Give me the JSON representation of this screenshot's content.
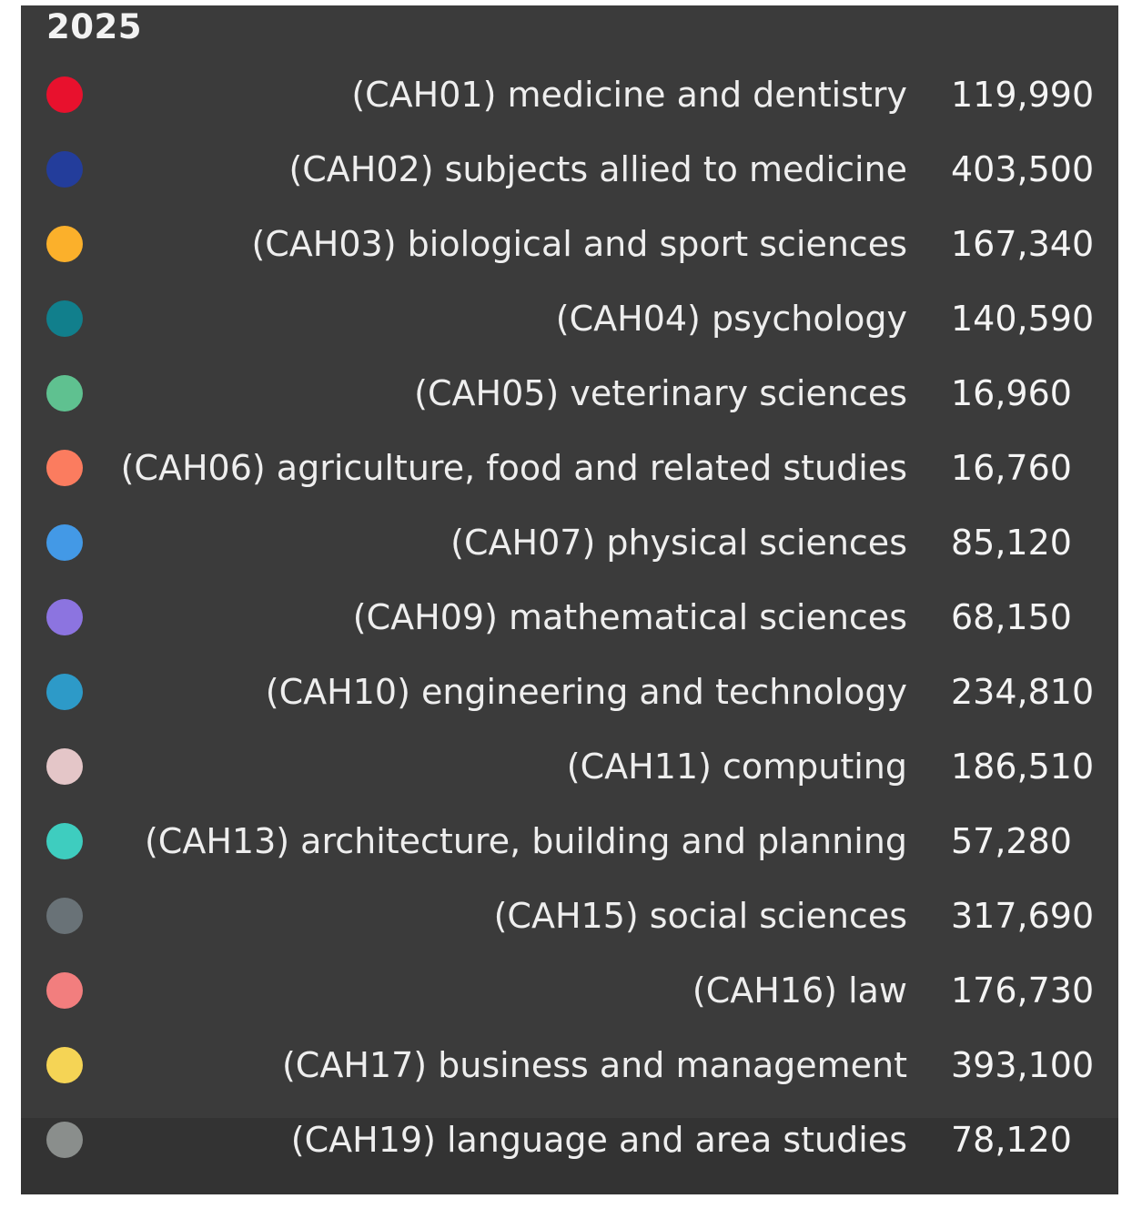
{
  "tooltip": {
    "year": "2025",
    "rows": [
      {
        "label": "(CAH01) medicine and dentistry",
        "value": "119,990",
        "color": "#e8112d"
      },
      {
        "label": "(CAH02) subjects allied to medicine",
        "value": "403,500",
        "color": "#233d9b"
      },
      {
        "label": "(CAH03) biological and sport sciences",
        "value": "167,340",
        "color": "#fbb02b"
      },
      {
        "label": "(CAH04) psychology",
        "value": "140,590",
        "color": "#117f8c"
      },
      {
        "label": "(CAH05) veterinary sciences",
        "value": "16,960",
        "color": "#5fc190"
      },
      {
        "label": "(CAH06) agriculture, food and related studies",
        "value": "16,760",
        "color": "#fb7c5f"
      },
      {
        "label": "(CAH07) physical sciences",
        "value": "85,120",
        "color": "#4399e6"
      },
      {
        "label": "(CAH09) mathematical sciences",
        "value": "68,150",
        "color": "#8c74e0"
      },
      {
        "label": "(CAH10) engineering and technology",
        "value": "234,810",
        "color": "#2d9ac8"
      },
      {
        "label": "(CAH11) computing",
        "value": "186,510",
        "color": "#e4c6c8"
      },
      {
        "label": "(CAH13) architecture, building and planning",
        "value": "57,280",
        "color": "#3ecdbf"
      },
      {
        "label": "(CAH15) social sciences",
        "value": "317,690",
        "color": "#697277"
      },
      {
        "label": "(CAH16) law",
        "value": "176,730",
        "color": "#f27e7e"
      },
      {
        "label": "(CAH17) business and management",
        "value": "393,100",
        "color": "#f5d455"
      },
      {
        "label": "(CAH19) language and area studies",
        "value": "78,120",
        "color": "#8a8e8c"
      }
    ]
  }
}
